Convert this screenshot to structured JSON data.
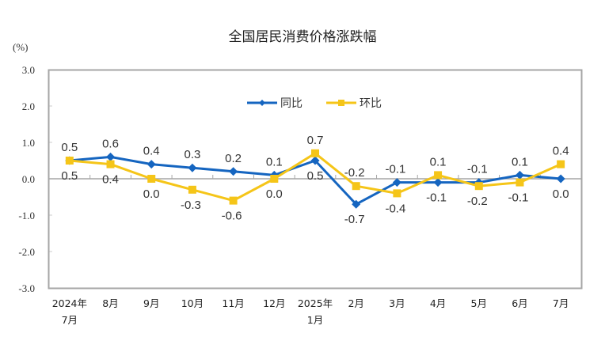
{
  "chart_data": {
    "type": "line",
    "title": "全国居民消费价格涨跌幅",
    "ylabel": "(%)",
    "xlabel": "",
    "ylim": [
      -3.0,
      3.0
    ],
    "yticks": [
      "3.0",
      "2.0",
      "1.0",
      "0.0",
      "-1.0",
      "-2.0",
      "-3.0"
    ],
    "grid": false,
    "legend_position": "top-center-inside",
    "categories": [
      "2024年7月",
      "8月",
      "9月",
      "10月",
      "11月",
      "12月",
      "2025年1月",
      "2月",
      "3月",
      "4月",
      "5月",
      "6月",
      "7月"
    ],
    "category_labels": [
      [
        "2024年",
        "7月"
      ],
      [
        "8月"
      ],
      [
        "9月"
      ],
      [
        "10月"
      ],
      [
        "11月"
      ],
      [
        "12月"
      ],
      [
        "2025年",
        "1月"
      ],
      [
        "2月"
      ],
      [
        "3月"
      ],
      [
        "4月"
      ],
      [
        "5月"
      ],
      [
        "6月"
      ],
      [
        "7月"
      ]
    ],
    "series": [
      {
        "name": "同比",
        "color": "#1565C0",
        "marker": "diamond",
        "values": [
          0.5,
          0.6,
          0.4,
          0.3,
          0.2,
          0.1,
          0.5,
          -0.7,
          -0.1,
          -0.1,
          -0.1,
          0.1,
          0.0
        ],
        "labels": [
          "0.5",
          "0.6",
          "0.4",
          "0.3",
          "0.2",
          "0.1",
          "0.5",
          "-0.7",
          "-0.1",
          "-0.1",
          "-0.1",
          "0.1",
          "0.0"
        ],
        "label_pos": [
          "above",
          "above",
          "above",
          "above",
          "above",
          "above",
          "below",
          "below",
          "above",
          "below",
          "above",
          "above",
          "below"
        ]
      },
      {
        "name": "环比",
        "color": "#F5C518",
        "marker": "square",
        "values": [
          0.5,
          0.4,
          0.0,
          -0.3,
          -0.6,
          0.0,
          0.7,
          -0.2,
          -0.4,
          0.1,
          -0.2,
          -0.1,
          0.4
        ],
        "labels": [
          "0.5",
          "0.4",
          "0.0",
          "-0.3",
          "-0.6",
          "0.0",
          "0.7",
          "-0.2",
          "-0.4",
          "0.1",
          "-0.2",
          "-0.1",
          "0.4"
        ],
        "label_pos": [
          "below",
          "below",
          "below",
          "below",
          "below",
          "below",
          "above",
          "above",
          "below",
          "above",
          "below",
          "below",
          "above"
        ]
      }
    ]
  }
}
